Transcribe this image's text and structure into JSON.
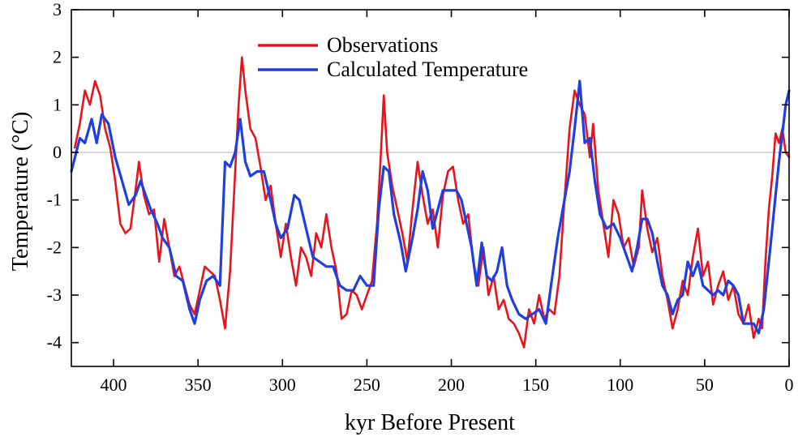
{
  "chart_data": {
    "type": "line",
    "title": "",
    "xlabel": "kyr Before Present",
    "ylabel": "Temperature (°C)",
    "xlim": [
      425,
      0
    ],
    "ylim": [
      -4.5,
      3
    ],
    "x_reversed": true,
    "x_ticks": [
      400,
      350,
      300,
      250,
      200,
      150,
      100,
      50,
      0
    ],
    "x_tick_labels": [
      "400",
      "350",
      "300",
      "250",
      "200",
      "150",
      "100",
      "50",
      "0"
    ],
    "y_ticks": [
      3,
      2,
      1,
      0,
      -1,
      -2,
      -3,
      -4
    ],
    "y_tick_labels": [
      "3",
      "2",
      "1",
      "0",
      "-1",
      "-2",
      "-3",
      "-4"
    ],
    "zero_line": true,
    "grid": false,
    "legend_position": "top-center",
    "series": [
      {
        "name": "Observations",
        "color": "#e8141c",
        "points": [
          [
            423,
            0.1
          ],
          [
            420,
            0.6
          ],
          [
            417,
            1.3
          ],
          [
            414,
            1.0
          ],
          [
            411,
            1.5
          ],
          [
            408,
            1.2
          ],
          [
            405,
            0.5
          ],
          [
            402,
            0.1
          ],
          [
            399,
            -0.6
          ],
          [
            396,
            -1.5
          ],
          [
            393,
            -1.7
          ],
          [
            390,
            -1.6
          ],
          [
            387,
            -0.8
          ],
          [
            385,
            -0.2
          ],
          [
            382,
            -0.9
          ],
          [
            379,
            -1.3
          ],
          [
            376,
            -1.2
          ],
          [
            373,
            -2.3
          ],
          [
            370,
            -1.4
          ],
          [
            367,
            -2.0
          ],
          [
            364,
            -2.6
          ],
          [
            361,
            -2.4
          ],
          [
            358,
            -2.8
          ],
          [
            355,
            -3.2
          ],
          [
            352,
            -3.4
          ],
          [
            349,
            -2.9
          ],
          [
            346,
            -2.4
          ],
          [
            343,
            -2.5
          ],
          [
            340,
            -2.6
          ],
          [
            337,
            -3.1
          ],
          [
            334,
            -3.7
          ],
          [
            331,
            -2.5
          ],
          [
            328,
            -0.4
          ],
          [
            326,
            1.0
          ],
          [
            324,
            2.0
          ],
          [
            322,
            1.3
          ],
          [
            319,
            0.5
          ],
          [
            316,
            0.3
          ],
          [
            313,
            -0.3
          ],
          [
            310,
            -1.0
          ],
          [
            307,
            -0.7
          ],
          [
            304,
            -1.5
          ],
          [
            301,
            -2.2
          ],
          [
            298,
            -1.5
          ],
          [
            295,
            -2.2
          ],
          [
            292,
            -2.8
          ],
          [
            289,
            -2.0
          ],
          [
            286,
            -2.2
          ],
          [
            283,
            -2.6
          ],
          [
            280,
            -1.7
          ],
          [
            277,
            -2.0
          ],
          [
            274,
            -1.3
          ],
          [
            271,
            -2.0
          ],
          [
            268,
            -2.5
          ],
          [
            265,
            -3.5
          ],
          [
            262,
            -3.4
          ],
          [
            259,
            -2.9
          ],
          [
            256,
            -3.0
          ],
          [
            253,
            -3.3
          ],
          [
            250,
            -3.0
          ],
          [
            247,
            -2.7
          ],
          [
            244,
            -1.5
          ],
          [
            242,
            -0.2
          ],
          [
            240,
            1.2
          ],
          [
            238,
            0.0
          ],
          [
            235,
            -0.7
          ],
          [
            232,
            -1.2
          ],
          [
            229,
            -1.7
          ],
          [
            226,
            -2.3
          ],
          [
            223,
            -1.2
          ],
          [
            220,
            -0.2
          ],
          [
            217,
            -0.9
          ],
          [
            214,
            -1.5
          ],
          [
            211,
            -1.2
          ],
          [
            208,
            -2.0
          ],
          [
            205,
            -0.9
          ],
          [
            202,
            -0.4
          ],
          [
            199,
            -0.3
          ],
          [
            196,
            -1.0
          ],
          [
            193,
            -1.5
          ],
          [
            190,
            -1.3
          ],
          [
            187,
            -2.3
          ],
          [
            184,
            -2.8
          ],
          [
            181,
            -2.0
          ],
          [
            178,
            -3.0
          ],
          [
            175,
            -2.6
          ],
          [
            172,
            -3.3
          ],
          [
            169,
            -3.1
          ],
          [
            166,
            -3.5
          ],
          [
            163,
            -3.6
          ],
          [
            160,
            -3.8
          ],
          [
            157,
            -4.1
          ],
          [
            154,
            -3.3
          ],
          [
            151,
            -3.6
          ],
          [
            148,
            -3.0
          ],
          [
            145,
            -3.5
          ],
          [
            142,
            -3.3
          ],
          [
            139,
            -3.4
          ],
          [
            136,
            -2.6
          ],
          [
            133,
            -1.0
          ],
          [
            130,
            0.5
          ],
          [
            127,
            1.3
          ],
          [
            124,
            1.0
          ],
          [
            121,
            0.8
          ],
          [
            118,
            -0.1
          ],
          [
            116,
            0.6
          ],
          [
            113,
            -0.8
          ],
          [
            110,
            -1.5
          ],
          [
            107,
            -2.2
          ],
          [
            104,
            -1.0
          ],
          [
            101,
            -1.3
          ],
          [
            98,
            -2.0
          ],
          [
            95,
            -1.8
          ],
          [
            92,
            -2.4
          ],
          [
            89,
            -2.0
          ],
          [
            87,
            -0.8
          ],
          [
            84,
            -1.6
          ],
          [
            81,
            -2.1
          ],
          [
            78,
            -1.8
          ],
          [
            75,
            -2.6
          ],
          [
            72,
            -3.1
          ],
          [
            69,
            -3.7
          ],
          [
            66,
            -3.3
          ],
          [
            63,
            -2.7
          ],
          [
            60,
            -3.0
          ],
          [
            57,
            -2.2
          ],
          [
            54,
            -1.6
          ],
          [
            51,
            -2.6
          ],
          [
            48,
            -2.3
          ],
          [
            45,
            -3.2
          ],
          [
            42,
            -2.8
          ],
          [
            39,
            -2.5
          ],
          [
            36,
            -3.1
          ],
          [
            33,
            -2.8
          ],
          [
            30,
            -3.4
          ],
          [
            27,
            -3.6
          ],
          [
            24,
            -3.2
          ],
          [
            21,
            -3.9
          ],
          [
            18,
            -3.5
          ],
          [
            16,
            -3.7
          ],
          [
            14,
            -2.3
          ],
          [
            12,
            -1.2
          ],
          [
            10,
            -0.5
          ],
          [
            8,
            0.4
          ],
          [
            6,
            0.2
          ],
          [
            4,
            0.5
          ],
          [
            2,
            0.0
          ],
          [
            0,
            -0.1
          ]
        ]
      },
      {
        "name": "Calculated Temperature",
        "color": "#1f3fe0",
        "points": [
          [
            425,
            -0.4
          ],
          [
            420,
            0.3
          ],
          [
            417,
            0.2
          ],
          [
            413,
            0.7
          ],
          [
            410,
            0.2
          ],
          [
            407,
            0.8
          ],
          [
            403,
            0.6
          ],
          [
            399,
            -0.1
          ],
          [
            395,
            -0.6
          ],
          [
            391,
            -1.1
          ],
          [
            387,
            -0.9
          ],
          [
            384,
            -0.6
          ],
          [
            381,
            -0.9
          ],
          [
            378,
            -1.2
          ],
          [
            374,
            -1.5
          ],
          [
            371,
            -1.8
          ],
          [
            367,
            -2.0
          ],
          [
            363,
            -2.6
          ],
          [
            359,
            -2.7
          ],
          [
            355,
            -3.3
          ],
          [
            352,
            -3.6
          ],
          [
            349,
            -3.1
          ],
          [
            345,
            -2.7
          ],
          [
            341,
            -2.6
          ],
          [
            337,
            -2.8
          ],
          [
            334,
            -0.2
          ],
          [
            331,
            -0.3
          ],
          [
            328,
            0.0
          ],
          [
            325,
            0.7
          ],
          [
            322,
            -0.2
          ],
          [
            319,
            -0.5
          ],
          [
            315,
            -0.4
          ],
          [
            311,
            -0.4
          ],
          [
            307,
            -1.0
          ],
          [
            304,
            -1.5
          ],
          [
            301,
            -1.8
          ],
          [
            297,
            -1.6
          ],
          [
            293,
            -0.9
          ],
          [
            290,
            -1.0
          ],
          [
            286,
            -1.6
          ],
          [
            282,
            -2.2
          ],
          [
            278,
            -2.3
          ],
          [
            274,
            -2.4
          ],
          [
            270,
            -2.4
          ],
          [
            266,
            -2.8
          ],
          [
            262,
            -2.9
          ],
          [
            258,
            -2.9
          ],
          [
            254,
            -2.6
          ],
          [
            250,
            -2.8
          ],
          [
            246,
            -2.8
          ],
          [
            243,
            -1.2
          ],
          [
            240,
            -0.3
          ],
          [
            237,
            -0.4
          ],
          [
            234,
            -1.3
          ],
          [
            230,
            -1.9
          ],
          [
            227,
            -2.5
          ],
          [
            223,
            -1.8
          ],
          [
            220,
            -1.2
          ],
          [
            217,
            -0.4
          ],
          [
            214,
            -0.8
          ],
          [
            211,
            -1.6
          ],
          [
            208,
            -1.2
          ],
          [
            205,
            -0.8
          ],
          [
            201,
            -0.8
          ],
          [
            197,
            -0.8
          ],
          [
            194,
            -1.0
          ],
          [
            191,
            -1.5
          ],
          [
            188,
            -2.0
          ],
          [
            185,
            -2.8
          ],
          [
            182,
            -1.9
          ],
          [
            179,
            -2.6
          ],
          [
            176,
            -2.7
          ],
          [
            173,
            -2.5
          ],
          [
            170,
            -2.0
          ],
          [
            167,
            -2.8
          ],
          [
            164,
            -3.1
          ],
          [
            160,
            -3.4
          ],
          [
            156,
            -3.5
          ],
          [
            152,
            -3.4
          ],
          [
            148,
            -3.3
          ],
          [
            144,
            -3.6
          ],
          [
            141,
            -2.8
          ],
          [
            137,
            -1.8
          ],
          [
            133,
            -1.0
          ],
          [
            130,
            -0.4
          ],
          [
            127,
            0.5
          ],
          [
            124,
            1.5
          ],
          [
            121,
            0.2
          ],
          [
            118,
            0.3
          ],
          [
            115,
            -0.6
          ],
          [
            112,
            -1.3
          ],
          [
            108,
            -1.6
          ],
          [
            104,
            -1.5
          ],
          [
            100,
            -1.8
          ],
          [
            96,
            -2.2
          ],
          [
            93,
            -2.5
          ],
          [
            90,
            -2.0
          ],
          [
            87,
            -1.4
          ],
          [
            84,
            -1.4
          ],
          [
            81,
            -1.7
          ],
          [
            78,
            -2.3
          ],
          [
            75,
            -2.8
          ],
          [
            72,
            -3.0
          ],
          [
            69,
            -3.4
          ],
          [
            66,
            -3.1
          ],
          [
            63,
            -3.0
          ],
          [
            60,
            -2.3
          ],
          [
            57,
            -2.6
          ],
          [
            54,
            -2.3
          ],
          [
            51,
            -2.8
          ],
          [
            48,
            -2.9
          ],
          [
            45,
            -3.0
          ],
          [
            42,
            -2.9
          ],
          [
            39,
            -3.0
          ],
          [
            36,
            -2.7
          ],
          [
            33,
            -2.8
          ],
          [
            30,
            -3.0
          ],
          [
            27,
            -3.6
          ],
          [
            24,
            -3.6
          ],
          [
            21,
            -3.6
          ],
          [
            18,
            -3.8
          ],
          [
            15,
            -3.3
          ],
          [
            12,
            -2.3
          ],
          [
            10,
            -1.6
          ],
          [
            8,
            -0.9
          ],
          [
            6,
            -0.2
          ],
          [
            4,
            0.4
          ],
          [
            2,
            1.0
          ],
          [
            0,
            1.3
          ]
        ]
      }
    ]
  }
}
